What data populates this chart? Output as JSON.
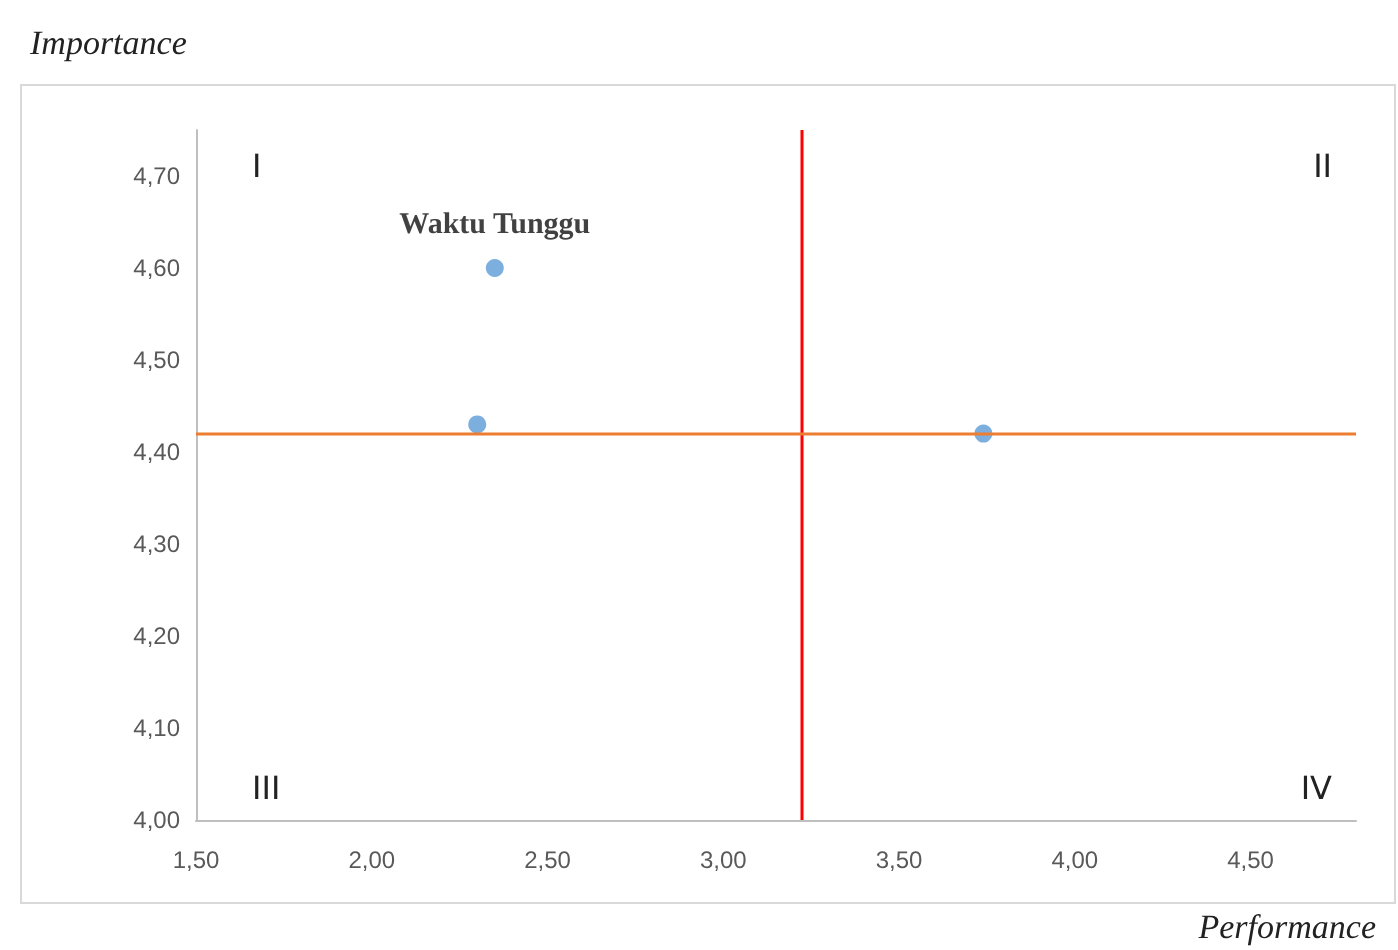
{
  "chart_data": {
    "type": "scatter",
    "xlabel": "Performance",
    "ylabel": "Importance",
    "series": [
      {
        "color": "#5b9bd5",
        "x": [
          2.35,
          2.3,
          3.74
        ],
        "values": [
          4.6,
          4.43,
          4.42
        ]
      }
    ],
    "xlim": [
      1.5,
      4.8
    ],
    "ylim": [
      4.0,
      4.75
    ],
    "xticks": [
      {
        "value": 1.5,
        "label": "1,50"
      },
      {
        "value": 2.0,
        "label": "2,00"
      },
      {
        "value": 2.5,
        "label": "2,50"
      },
      {
        "value": 3.0,
        "label": "3,00"
      },
      {
        "value": 3.5,
        "label": "3,50"
      },
      {
        "value": 4.0,
        "label": "4,00"
      },
      {
        "value": 4.5,
        "label": "4,50"
      }
    ],
    "yticks": [
      {
        "value": 4.0,
        "label": "4,00"
      },
      {
        "value": 4.1,
        "label": "4,10"
      },
      {
        "value": 4.2,
        "label": "4,20"
      },
      {
        "value": 4.3,
        "label": "4,30"
      },
      {
        "value": 4.4,
        "label": "4,40"
      },
      {
        "value": 4.5,
        "label": "4,50"
      },
      {
        "value": 4.6,
        "label": "4,60"
      },
      {
        "value": 4.7,
        "label": "4,70"
      }
    ],
    "ref_lines": [
      {
        "axis": "x",
        "value": 3.22,
        "color": "#ff0000"
      },
      {
        "axis": "y",
        "value": 4.42,
        "color": "#ed7d31"
      }
    ],
    "annotations": [
      {
        "text": "Waktu Tunggu",
        "x": 2.35,
        "y": 4.6
      },
      "I",
      "II",
      "III",
      "IV"
    ],
    "grid": false,
    "marker": "circle"
  }
}
